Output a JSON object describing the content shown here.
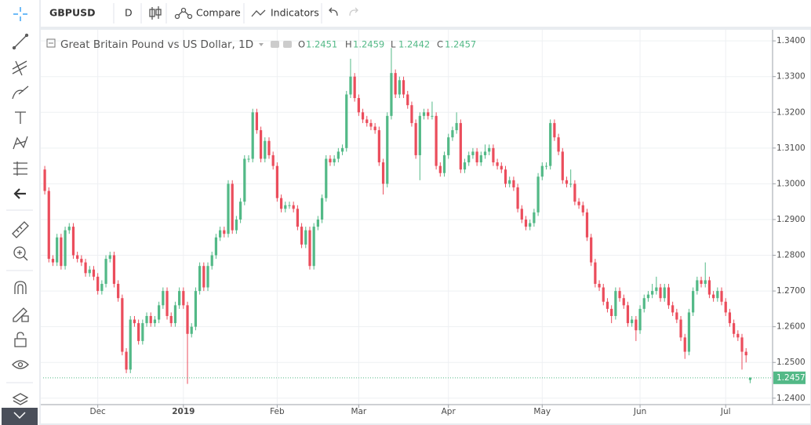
{
  "toolbar": {
    "symbol": "GBPUSD",
    "interval": "D",
    "compare": "Compare",
    "indicators": "Indicators"
  },
  "chart_data": {
    "type": "candlestick",
    "title": "Great Britain Pound vs US Dollar, 1D",
    "ohlc_labels": [
      "O",
      "H",
      "L",
      "C"
    ],
    "up_color": "#53b987",
    "down_color": "#eb4d5c",
    "grid": true,
    "ylim": [
      1.2382,
      1.3431
    ],
    "yticks": [
      {
        "value": 1.24,
        "label": "1.2400"
      },
      {
        "value": 1.25,
        "label": "1.2500"
      },
      {
        "value": 1.26,
        "label": "1.2600"
      },
      {
        "value": 1.27,
        "label": "1.2700"
      },
      {
        "value": 1.28,
        "label": "1.2800"
      },
      {
        "value": 1.29,
        "label": "1.2900"
      },
      {
        "value": 1.3,
        "label": "1.3000"
      },
      {
        "value": 1.31,
        "label": "1.3100"
      },
      {
        "value": 1.32,
        "label": "1.3200"
      },
      {
        "value": 1.33,
        "label": "1.3300"
      },
      {
        "value": 1.34,
        "label": "1.3400"
      }
    ],
    "xlim": [
      -0.4,
      178.5
    ],
    "xticks": [
      {
        "value": 13,
        "label": "Dec"
      },
      {
        "value": 34,
        "label": "2019"
      },
      {
        "value": 57,
        "label": "Feb"
      },
      {
        "value": 77,
        "label": "Mar"
      },
      {
        "value": 99,
        "label": "Apr"
      },
      {
        "value": 122,
        "label": "May"
      },
      {
        "value": 146,
        "label": "Jun"
      },
      {
        "value": 167,
        "label": "Jul"
      }
    ],
    "ohlc": [
      [
        1.304,
        1.305,
        1.297,
        1.298
      ],
      [
        1.298,
        1.299,
        1.278,
        1.279
      ],
      [
        1.279,
        1.28,
        1.277,
        1.278
      ],
      [
        1.278,
        1.286,
        1.277,
        1.285
      ],
      [
        1.285,
        1.286,
        1.276,
        1.277
      ],
      [
        1.277,
        1.288,
        1.276,
        1.287
      ],
      [
        1.287,
        1.289,
        1.286,
        1.288
      ],
      [
        1.288,
        1.289,
        1.279,
        1.28
      ],
      [
        1.28,
        1.281,
        1.278,
        1.279
      ],
      [
        1.279,
        1.28,
        1.277,
        1.278
      ],
      [
        1.278,
        1.279,
        1.274,
        1.275
      ],
      [
        1.275,
        1.277,
        1.274,
        1.276
      ],
      [
        1.276,
        1.277,
        1.273,
        1.274
      ],
      [
        1.274,
        1.275,
        1.269,
        1.27
      ],
      [
        1.27,
        1.273,
        1.269,
        1.272
      ],
      [
        1.272,
        1.28,
        1.271,
        1.279
      ],
      [
        1.279,
        1.281,
        1.278,
        1.28
      ],
      [
        1.28,
        1.281,
        1.271,
        1.272
      ],
      [
        1.272,
        1.273,
        1.267,
        1.268
      ],
      [
        1.268,
        1.269,
        1.252,
        1.253
      ],
      [
        1.253,
        1.254,
        1.247,
        1.248
      ],
      [
        1.248,
        1.263,
        1.247,
        1.262
      ],
      [
        1.262,
        1.263,
        1.26,
        1.261
      ],
      [
        1.261,
        1.262,
        1.255,
        1.256
      ],
      [
        1.256,
        1.262,
        1.255,
        1.261
      ],
      [
        1.261,
        1.264,
        1.26,
        1.263
      ],
      [
        1.263,
        1.264,
        1.26,
        1.261
      ],
      [
        1.261,
        1.263,
        1.26,
        1.262
      ],
      [
        1.262,
        1.267,
        1.261,
        1.266
      ],
      [
        1.266,
        1.271,
        1.265,
        1.27
      ],
      [
        1.27,
        1.271,
        1.262,
        1.263
      ],
      [
        1.263,
        1.264,
        1.26,
        1.261
      ],
      [
        1.261,
        1.267,
        1.26,
        1.266
      ],
      [
        1.266,
        1.271,
        1.265,
        1.27
      ],
      [
        1.27,
        1.271,
        1.265,
        1.266
      ],
      [
        1.266,
        1.267,
        1.244,
        1.258
      ],
      [
        1.258,
        1.261,
        1.257,
        1.26
      ],
      [
        1.26,
        1.271,
        1.259,
        1.27
      ],
      [
        1.27,
        1.278,
        1.269,
        1.277
      ],
      [
        1.277,
        1.278,
        1.27,
        1.271
      ],
      [
        1.271,
        1.278,
        1.27,
        1.277
      ],
      [
        1.277,
        1.281,
        1.276,
        1.28
      ],
      [
        1.28,
        1.286,
        1.279,
        1.285
      ],
      [
        1.285,
        1.288,
        1.284,
        1.287
      ],
      [
        1.287,
        1.288,
        1.285,
        1.286
      ],
      [
        1.286,
        1.301,
        1.285,
        1.3
      ],
      [
        1.3,
        1.301,
        1.286,
        1.287
      ],
      [
        1.287,
        1.291,
        1.286,
        1.29
      ],
      [
        1.29,
        1.296,
        1.289,
        1.295
      ],
      [
        1.295,
        1.308,
        1.294,
        1.307
      ],
      [
        1.307,
        1.308,
        1.306,
        1.307
      ],
      [
        1.307,
        1.321,
        1.306,
        1.32
      ],
      [
        1.32,
        1.321,
        1.314,
        1.315
      ],
      [
        1.315,
        1.316,
        1.306,
        1.307
      ],
      [
        1.307,
        1.313,
        1.306,
        1.312
      ],
      [
        1.312,
        1.313,
        1.307,
        1.308
      ],
      [
        1.308,
        1.309,
        1.304,
        1.305
      ],
      [
        1.305,
        1.306,
        1.295,
        1.296
      ],
      [
        1.296,
        1.297,
        1.292,
        1.293
      ],
      [
        1.293,
        1.295,
        1.292,
        1.294
      ],
      [
        1.294,
        1.295,
        1.293,
        1.294
      ],
      [
        1.294,
        1.295,
        1.292,
        1.293
      ],
      [
        1.293,
        1.294,
        1.287,
        1.288
      ],
      [
        1.288,
        1.289,
        1.282,
        1.283
      ],
      [
        1.283,
        1.288,
        1.282,
        1.287
      ],
      [
        1.287,
        1.288,
        1.276,
        1.277
      ],
      [
        1.277,
        1.289,
        1.276,
        1.288
      ],
      [
        1.288,
        1.291,
        1.287,
        1.29
      ],
      [
        1.29,
        1.297,
        1.289,
        1.296
      ],
      [
        1.296,
        1.308,
        1.295,
        1.307
      ],
      [
        1.307,
        1.308,
        1.305,
        1.306
      ],
      [
        1.306,
        1.308,
        1.305,
        1.307
      ],
      [
        1.307,
        1.31,
        1.306,
        1.309
      ],
      [
        1.309,
        1.311,
        1.308,
        1.31
      ],
      [
        1.31,
        1.326,
        1.309,
        1.325
      ],
      [
        1.325,
        1.335,
        1.324,
        1.33
      ],
      [
        1.33,
        1.331,
        1.323,
        1.324
      ],
      [
        1.324,
        1.325,
        1.319,
        1.32
      ],
      [
        1.32,
        1.321,
        1.317,
        1.318
      ],
      [
        1.318,
        1.319,
        1.316,
        1.317
      ],
      [
        1.317,
        1.318,
        1.315,
        1.316
      ],
      [
        1.316,
        1.317,
        1.314,
        1.315
      ],
      [
        1.315,
        1.316,
        1.305,
        1.306
      ],
      [
        1.306,
        1.307,
        1.297,
        1.3
      ],
      [
        1.3,
        1.32,
        1.299,
        1.319
      ],
      [
        1.319,
        1.338,
        1.318,
        1.331
      ],
      [
        1.331,
        1.332,
        1.324,
        1.325
      ],
      [
        1.325,
        1.33,
        1.324,
        1.329
      ],
      [
        1.329,
        1.33,
        1.324,
        1.325
      ],
      [
        1.325,
        1.326,
        1.321,
        1.322
      ],
      [
        1.322,
        1.323,
        1.316,
        1.317
      ],
      [
        1.317,
        1.318,
        1.307,
        1.308
      ],
      [
        1.308,
        1.32,
        1.301,
        1.319
      ],
      [
        1.319,
        1.321,
        1.318,
        1.32
      ],
      [
        1.32,
        1.321,
        1.318,
        1.319
      ],
      [
        1.319,
        1.323,
        1.318,
        1.319
      ],
      [
        1.319,
        1.32,
        1.304,
        1.305
      ],
      [
        1.305,
        1.306,
        1.302,
        1.303
      ],
      [
        1.303,
        1.309,
        1.302,
        1.308
      ],
      [
        1.308,
        1.314,
        1.307,
        1.313
      ],
      [
        1.313,
        1.316,
        1.312,
        1.315
      ],
      [
        1.315,
        1.32,
        1.314,
        1.317
      ],
      [
        1.317,
        1.318,
        1.303,
        1.304
      ],
      [
        1.304,
        1.307,
        1.303,
        1.306
      ],
      [
        1.306,
        1.309,
        1.305,
        1.308
      ],
      [
        1.308,
        1.31,
        1.307,
        1.309
      ],
      [
        1.309,
        1.31,
        1.305,
        1.306
      ],
      [
        1.306,
        1.309,
        1.305,
        1.308
      ],
      [
        1.308,
        1.311,
        1.307,
        1.309
      ],
      [
        1.309,
        1.311,
        1.308,
        1.31
      ],
      [
        1.31,
        1.311,
        1.305,
        1.306
      ],
      [
        1.306,
        1.307,
        1.304,
        1.305
      ],
      [
        1.305,
        1.306,
        1.303,
        1.304
      ],
      [
        1.304,
        1.305,
        1.299,
        1.3
      ],
      [
        1.3,
        1.302,
        1.299,
        1.301
      ],
      [
        1.301,
        1.302,
        1.298,
        1.299
      ],
      [
        1.299,
        1.3,
        1.292,
        1.293
      ],
      [
        1.293,
        1.294,
        1.289,
        1.29
      ],
      [
        1.29,
        1.291,
        1.287,
        1.288
      ],
      [
        1.288,
        1.29,
        1.287,
        1.289
      ],
      [
        1.289,
        1.293,
        1.288,
        1.292
      ],
      [
        1.292,
        1.303,
        1.291,
        1.302
      ],
      [
        1.302,
        1.306,
        1.301,
        1.305
      ],
      [
        1.305,
        1.306,
        1.304,
        1.305
      ],
      [
        1.305,
        1.318,
        1.304,
        1.317
      ],
      [
        1.317,
        1.318,
        1.312,
        1.313
      ],
      [
        1.313,
        1.314,
        1.308,
        1.309
      ],
      [
        1.309,
        1.31,
        1.3,
        1.301
      ],
      [
        1.301,
        1.302,
        1.299,
        1.3
      ],
      [
        1.3,
        1.304,
        1.299,
        1.3
      ],
      [
        1.3,
        1.301,
        1.294,
        1.295
      ],
      [
        1.295,
        1.296,
        1.293,
        1.294
      ],
      [
        1.294,
        1.295,
        1.291,
        1.292
      ],
      [
        1.292,
        1.293,
        1.284,
        1.285
      ],
      [
        1.285,
        1.286,
        1.277,
        1.278
      ],
      [
        1.278,
        1.279,
        1.271,
        1.272
      ],
      [
        1.272,
        1.273,
        1.27,
        1.271
      ],
      [
        1.271,
        1.272,
        1.266,
        1.267
      ],
      [
        1.267,
        1.268,
        1.264,
        1.265
      ],
      [
        1.265,
        1.266,
        1.261,
        1.263
      ],
      [
        1.263,
        1.271,
        1.262,
        1.27
      ],
      [
        1.27,
        1.271,
        1.267,
        1.268
      ],
      [
        1.268,
        1.269,
        1.265,
        1.266
      ],
      [
        1.266,
        1.267,
        1.26,
        1.261
      ],
      [
        1.261,
        1.263,
        1.26,
        1.262
      ],
      [
        1.262,
        1.263,
        1.256,
        1.259
      ],
      [
        1.259,
        1.266,
        1.258,
        1.265
      ],
      [
        1.265,
        1.269,
        1.264,
        1.268
      ],
      [
        1.268,
        1.27,
        1.267,
        1.269
      ],
      [
        1.269,
        1.272,
        1.268,
        1.27
      ],
      [
        1.27,
        1.274,
        1.269,
        1.271
      ],
      [
        1.271,
        1.272,
        1.267,
        1.268
      ],
      [
        1.268,
        1.272,
        1.267,
        1.271
      ],
      [
        1.271,
        1.272,
        1.265,
        1.266
      ],
      [
        1.266,
        1.267,
        1.263,
        1.264
      ],
      [
        1.264,
        1.265,
        1.261,
        1.262
      ],
      [
        1.262,
        1.263,
        1.256,
        1.257
      ],
      [
        1.257,
        1.258,
        1.251,
        1.253
      ],
      [
        1.253,
        1.265,
        1.252,
        1.264
      ],
      [
        1.264,
        1.271,
        1.263,
        1.27
      ],
      [
        1.27,
        1.274,
        1.269,
        1.273
      ],
      [
        1.273,
        1.274,
        1.271,
        1.272
      ],
      [
        1.272,
        1.278,
        1.271,
        1.273
      ],
      [
        1.273,
        1.274,
        1.268,
        1.269
      ],
      [
        1.269,
        1.27,
        1.267,
        1.268
      ],
      [
        1.268,
        1.271,
        1.267,
        1.27
      ],
      [
        1.27,
        1.271,
        1.266,
        1.267
      ],
      [
        1.267,
        1.268,
        1.263,
        1.264
      ],
      [
        1.264,
        1.265,
        1.26,
        1.261
      ],
      [
        1.261,
        1.262,
        1.257,
        1.258
      ],
      [
        1.258,
        1.259,
        1.256,
        1.257
      ],
      [
        1.257,
        1.258,
        1.248,
        1.253
      ],
      [
        1.253,
        1.254,
        1.25,
        1.252
      ],
      [
        1.2451,
        1.2459,
        1.2442,
        1.2457
      ]
    ]
  }
}
